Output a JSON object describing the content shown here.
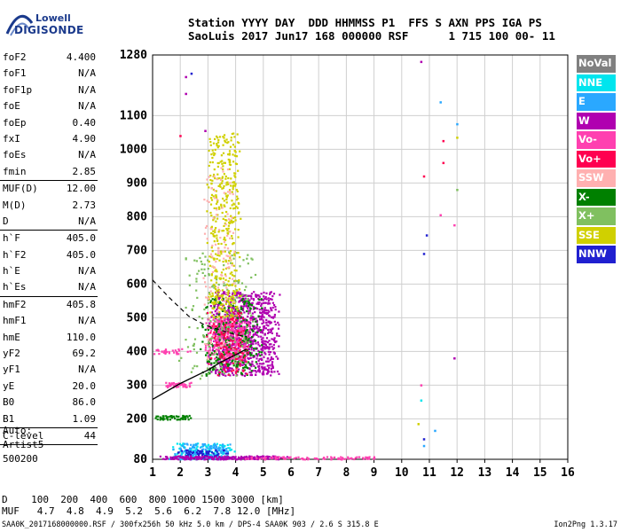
{
  "logo": {
    "line1": "Lowell",
    "line2": "DIGISONDE"
  },
  "header": {
    "line1": "Station YYYY DAY  DDD HHMMSS P1  FFS S AXN PPS IGA PS",
    "line2": "SaoLuis 2017 Jun17 168 000000 RSF      1 715 100 00- 11"
  },
  "params": [
    {
      "group": [
        {
          "name": "foF2",
          "value": "4.400"
        },
        {
          "name": "foF1",
          "value": "N/A"
        },
        {
          "name": "foF1p",
          "value": "N/A"
        },
        {
          "name": "foE",
          "value": "N/A"
        },
        {
          "name": "foEp",
          "value": "0.40"
        },
        {
          "name": "fxI",
          "value": "4.90"
        },
        {
          "name": "foEs",
          "value": "N/A"
        },
        {
          "name": "fmin",
          "value": "2.85"
        }
      ]
    },
    {
      "group": [
        {
          "name": "MUF(D)",
          "value": "12.00"
        },
        {
          "name": "M(D)",
          "value": "2.73"
        },
        {
          "name": "D",
          "value": "N/A"
        }
      ]
    },
    {
      "group": [
        {
          "name": "h`F",
          "value": "405.0"
        },
        {
          "name": "h`F2",
          "value": "405.0"
        },
        {
          "name": "h`E",
          "value": "N/A"
        },
        {
          "name": "h`Es",
          "value": "N/A"
        }
      ]
    },
    {
      "group": [
        {
          "name": "hmF2",
          "value": "405.8"
        },
        {
          "name": "hmF1",
          "value": "N/A"
        },
        {
          "name": "hmE",
          "value": "110.0"
        },
        {
          "name": "yF2",
          "value": "69.2"
        },
        {
          "name": "yF1",
          "value": "N/A"
        },
        {
          "name": "yE",
          "value": "20.0"
        },
        {
          "name": "B0",
          "value": "86.0"
        },
        {
          "name": "B1",
          "value": "1.09"
        }
      ]
    },
    {
      "group": [
        {
          "name": "C-level",
          "value": "44"
        }
      ]
    }
  ],
  "auto": {
    "line1": "Auto:",
    "line2": "Artist5",
    "line3": "500200"
  },
  "legend": [
    {
      "label": "NoVal",
      "color": "#808080"
    },
    {
      "label": "NNE",
      "color": "#00e5ee"
    },
    {
      "label": "E",
      "color": "#2aa8ff"
    },
    {
      "label": "W",
      "color": "#b000b0"
    },
    {
      "label": "Vo-",
      "color": "#ff40b0"
    },
    {
      "label": "Vo+",
      "color": "#ff0050"
    },
    {
      "label": "SSW",
      "color": "#ffb0b0"
    },
    {
      "label": "X-",
      "color": "#008000"
    },
    {
      "label": "X+",
      "color": "#80c060"
    },
    {
      "label": "SSE",
      "color": "#d0d000"
    },
    {
      "label": "NNW",
      "color": "#2020d0"
    }
  ],
  "footer": {
    "d_row": "D    100  200  400  600  800 1000 1500 3000 [km]",
    "muf_row": "MUF   4.7  4.8  4.9  5.2  5.6  6.2  7.8 12.0 [MHz]",
    "file_line": "SAA0K_2017168000000.RSF / 300fx256h 50 kHz 5.0 km / DPS-4 SAA0K 903 / 2.6 S 315.8 E",
    "version": "Ion2Png 1.3.17"
  },
  "chart_data": {
    "type": "scatter",
    "xlabel": "",
    "ylabel": "",
    "xlim": [
      1,
      16
    ],
    "ylim": [
      80,
      1280
    ],
    "x_ticks": [
      1,
      2,
      3,
      4,
      5,
      6,
      7,
      8,
      9,
      10,
      11,
      12,
      13,
      14,
      15,
      16
    ],
    "y_ticks": [
      80,
      200,
      300,
      400,
      500,
      600,
      700,
      800,
      900,
      1000,
      1100,
      1280
    ],
    "grid": true,
    "clusters": [
      {
        "name": "W",
        "color": "#b000b0",
        "x": [
          2.9,
          5.6
        ],
        "y": [
          330,
          580
        ],
        "n": 900
      },
      {
        "name": "Vo-",
        "color": "#ff40b0",
        "x": [
          2.8,
          4.6
        ],
        "y": [
          380,
          500
        ],
        "n": 350
      },
      {
        "name": "X-",
        "color": "#008000",
        "x": [
          2.6,
          5.0
        ],
        "y": [
          330,
          560
        ],
        "n": 250
      },
      {
        "name": "X+",
        "color": "#80c060",
        "x": [
          1.9,
          4.8
        ],
        "y": [
          320,
          700
        ],
        "n": 180
      },
      {
        "name": "SSE",
        "color": "#d0d000",
        "x": [
          2.9,
          4.2
        ],
        "y": [
          500,
          1050
        ],
        "n": 420
      },
      {
        "name": "SSW",
        "color": "#ffb0b0",
        "x": [
          2.7,
          4.0
        ],
        "y": [
          380,
          950
        ],
        "n": 120
      },
      {
        "name": "Vo+",
        "color": "#ff0050",
        "x": [
          2.9,
          4.5
        ],
        "y": [
          330,
          520
        ],
        "n": 120
      },
      {
        "name": "NNE",
        "color": "#00e5ee",
        "x": [
          1.5,
          4.0
        ],
        "y": [
          82,
          130
        ],
        "n": 140
      },
      {
        "name": "E",
        "color": "#2aa8ff",
        "x": [
          1.5,
          4.0
        ],
        "y": [
          82,
          130
        ],
        "n": 120
      },
      {
        "name": "NNW",
        "color": "#2020d0",
        "x": [
          1.5,
          3.8
        ],
        "y": [
          82,
          110
        ],
        "n": 80
      },
      {
        "name": "W",
        "color": "#b000b0",
        "x": [
          1.0,
          6.0
        ],
        "y": [
          82,
          92
        ],
        "n": 220
      },
      {
        "name": "Vo-",
        "color": "#ff40b0",
        "x": [
          4.0,
          9.2
        ],
        "y": [
          82,
          90
        ],
        "n": 80
      },
      {
        "name": "X-",
        "color": "#008000",
        "x": [
          1.0,
          2.4
        ],
        "y": [
          200,
          212
        ],
        "n": 60
      },
      {
        "name": "Vo-",
        "color": "#ff40b0",
        "x": [
          1.3,
          2.4
        ],
        "y": [
          296,
          310
        ],
        "n": 40
      },
      {
        "name": "Vo-",
        "color": "#ff40b0",
        "x": [
          1.0,
          2.4
        ],
        "y": [
          395,
          410
        ],
        "n": 30
      }
    ],
    "points": [
      {
        "x": 10.7,
        "y": 1260,
        "color": "#b000b0"
      },
      {
        "x": 11.4,
        "y": 1140,
        "color": "#2aa8ff"
      },
      {
        "x": 12.0,
        "y": 1075,
        "color": "#2aa8ff"
      },
      {
        "x": 11.5,
        "y": 1025,
        "color": "#ff0050"
      },
      {
        "x": 12.0,
        "y": 1035,
        "color": "#d0d000"
      },
      {
        "x": 11.5,
        "y": 960,
        "color": "#ff0050"
      },
      {
        "x": 10.8,
        "y": 920,
        "color": "#ff0050"
      },
      {
        "x": 12.0,
        "y": 880,
        "color": "#80c060"
      },
      {
        "x": 11.4,
        "y": 805,
        "color": "#ff40b0"
      },
      {
        "x": 11.9,
        "y": 775,
        "color": "#ff40b0"
      },
      {
        "x": 10.9,
        "y": 745,
        "color": "#2020d0"
      },
      {
        "x": 10.8,
        "y": 690,
        "color": "#2020d0"
      },
      {
        "x": 11.9,
        "y": 380,
        "color": "#b000b0"
      },
      {
        "x": 10.7,
        "y": 300,
        "color": "#ff40b0"
      },
      {
        "x": 10.7,
        "y": 255,
        "color": "#00e5ee"
      },
      {
        "x": 10.6,
        "y": 185,
        "color": "#d0d000"
      },
      {
        "x": 10.8,
        "y": 140,
        "color": "#2020d0"
      },
      {
        "x": 10.8,
        "y": 120,
        "color": "#2aa8ff"
      },
      {
        "x": 11.2,
        "y": 165,
        "color": "#2aa8ff"
      },
      {
        "x": 2.2,
        "y": 1215,
        "color": "#b000b0"
      },
      {
        "x": 2.4,
        "y": 1225,
        "color": "#2020d0"
      },
      {
        "x": 2.2,
        "y": 1165,
        "color": "#b000b0"
      },
      {
        "x": 2.0,
        "y": 1040,
        "color": "#ff0050"
      },
      {
        "x": 2.9,
        "y": 1055,
        "color": "#b000b0"
      }
    ],
    "profile_solid": [
      [
        1.0,
        258
      ],
      [
        2.0,
        305
      ],
      [
        3.0,
        345
      ],
      [
        3.5,
        370
      ],
      [
        4.0,
        390
      ],
      [
        4.4,
        408
      ]
    ],
    "profile_dashed": [
      [
        1.0,
        612
      ],
      [
        1.6,
        560
      ],
      [
        2.3,
        505
      ],
      [
        2.9,
        478
      ],
      [
        3.5,
        462
      ],
      [
        4.0,
        450
      ],
      [
        4.4,
        444
      ]
    ]
  }
}
